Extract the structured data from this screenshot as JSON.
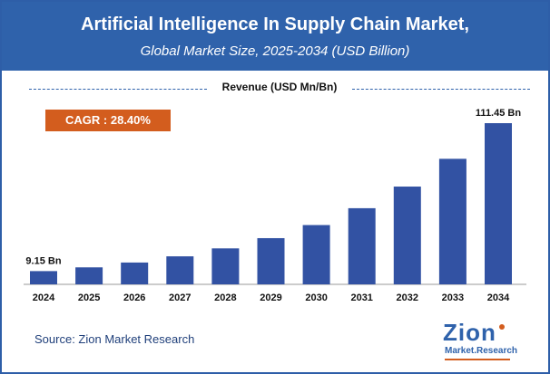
{
  "header": {
    "title": "Artificial Intelligence In Supply Chain Market,",
    "subtitle": "Global Market Size, 2025-2034 (USD Billion)"
  },
  "legend": {
    "label": "Revenue (USD Mn/Bn)"
  },
  "badge": {
    "cagr_label": "CAGR : 28.40%"
  },
  "footer": {
    "source": "Source: Zion Market Research"
  },
  "logo": {
    "top": "Zion",
    "bottom": "Market.Research"
  },
  "colors": {
    "bar": "#3252a3",
    "header": "#2f62ab",
    "badge": "#d35d1e"
  },
  "chart_data": {
    "type": "bar",
    "categories": [
      "2024",
      "2025",
      "2026",
      "2027",
      "2028",
      "2029",
      "2030",
      "2031",
      "2032",
      "2033",
      "2034"
    ],
    "values": [
      9.15,
      11.75,
      15.09,
      19.37,
      24.87,
      31.94,
      41.0,
      52.65,
      67.6,
      86.8,
      111.45
    ],
    "data_labels": {
      "first": "9.15 Bn",
      "last": "111.45 Bn"
    },
    "ylim": [
      0,
      111.45
    ],
    "grid": false
  }
}
